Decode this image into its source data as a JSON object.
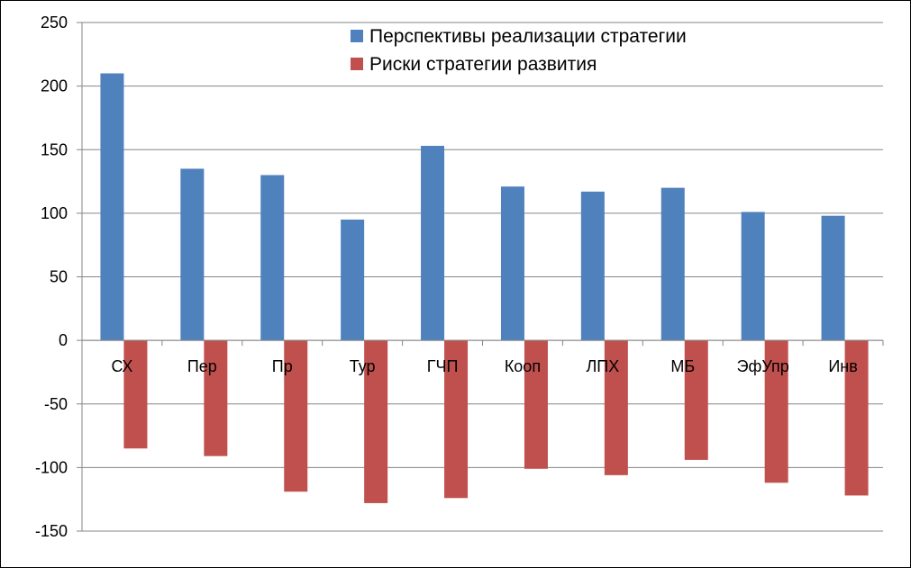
{
  "chart_data": {
    "type": "bar",
    "categories": [
      "СХ",
      "Пер",
      "Пр",
      "Тур",
      "ГЧП",
      "Кооп",
      "ЛПХ",
      "МБ",
      "ЭфУпр",
      "Инв"
    ],
    "series": [
      {
        "name": "Перспективы реализации стратегии",
        "color": "#4F81BD",
        "values": [
          210,
          135,
          130,
          95,
          153,
          121,
          117,
          120,
          101,
          98
        ]
      },
      {
        "name": "Риски стратегии развития",
        "color": "#C0504D",
        "values": [
          -85,
          -91,
          -119,
          -128,
          -124,
          -101,
          -106,
          -94,
          -112,
          -122
        ]
      }
    ],
    "yticks": [
      250,
      200,
      150,
      100,
      50,
      0,
      -50,
      -100,
      -150
    ],
    "ylim": [
      -150,
      250
    ],
    "grid": true,
    "legend_position": "top-center"
  }
}
